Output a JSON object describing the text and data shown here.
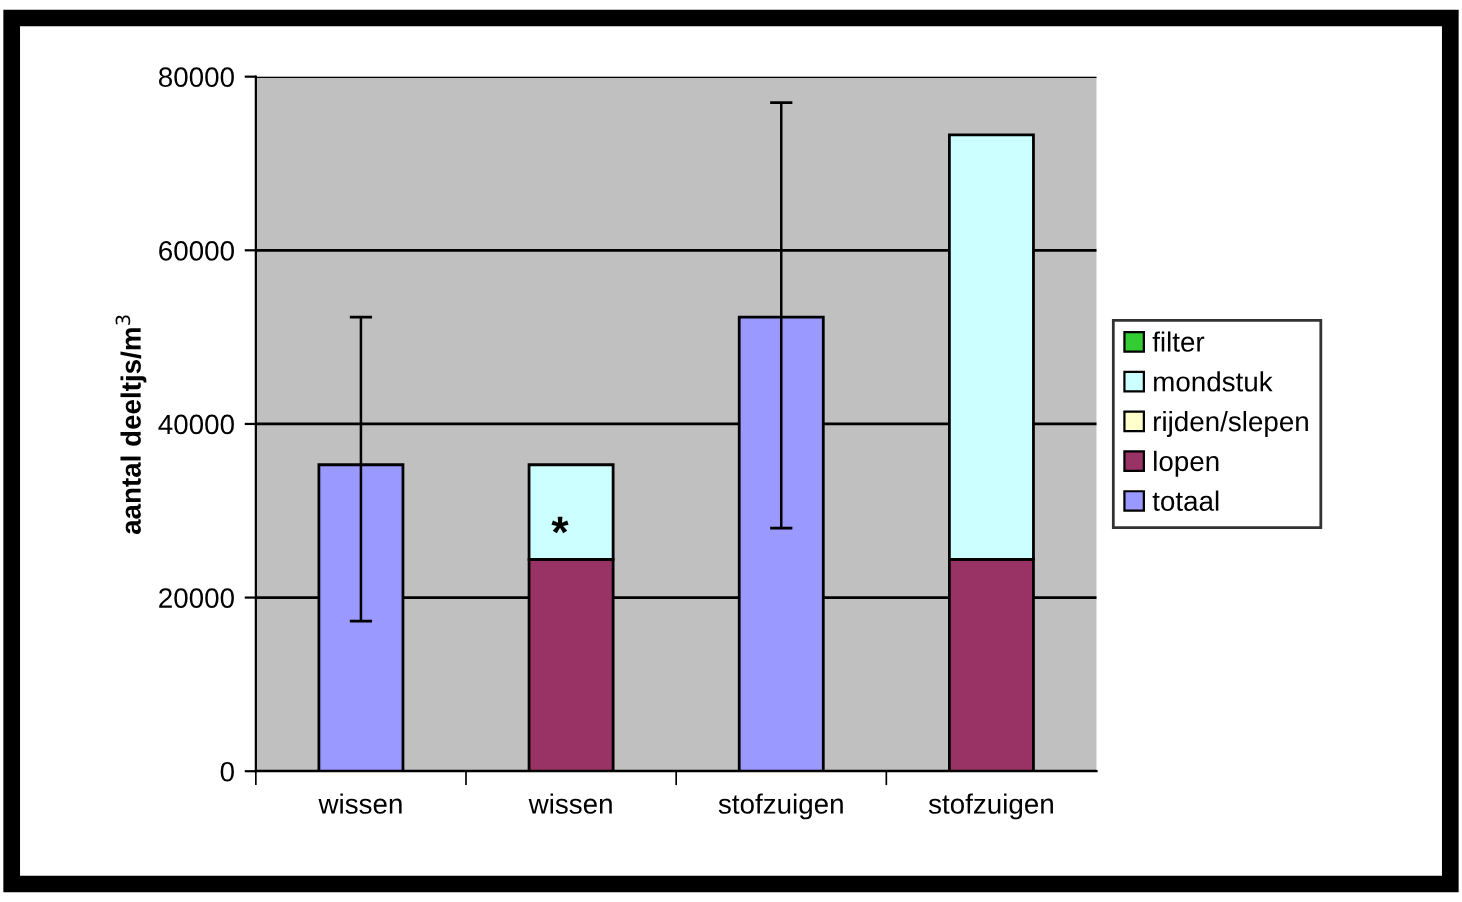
{
  "chart_data": {
    "type": "bar",
    "stacked": true,
    "ylabel": "aantal deeltjs/m$^{3}$",
    "categories": [
      "wissen",
      "wissen",
      "stofzuigen",
      "stofzuigen"
    ],
    "series": [
      {
        "name": "totaal",
        "color": "#9999ff",
        "values": [
          35300,
          null,
          52300,
          null
        ],
        "errors": [
          [
            17300,
            52300
          ],
          null,
          [
            28000,
            77000
          ],
          null
        ]
      },
      {
        "name": "lopen",
        "color": "#993366",
        "values": [
          null,
          24400,
          null,
          24400
        ]
      },
      {
        "name": "rijden/slepen",
        "color": "#ffffcc",
        "values": [
          null,
          null,
          null,
          null
        ]
      },
      {
        "name": "mondstuk",
        "color": "#ccffff",
        "values": [
          null,
          10900,
          null,
          48900
        ]
      },
      {
        "name": "filter",
        "color": "#33cc33",
        "values": [
          null,
          null,
          null,
          null
        ]
      }
    ],
    "annotations": [
      "*"
    ],
    "ylim": [
      0,
      80000
    ],
    "yticks": [
      0,
      20000,
      40000,
      60000,
      80000
    ],
    "grid": "y",
    "legend": "right"
  }
}
